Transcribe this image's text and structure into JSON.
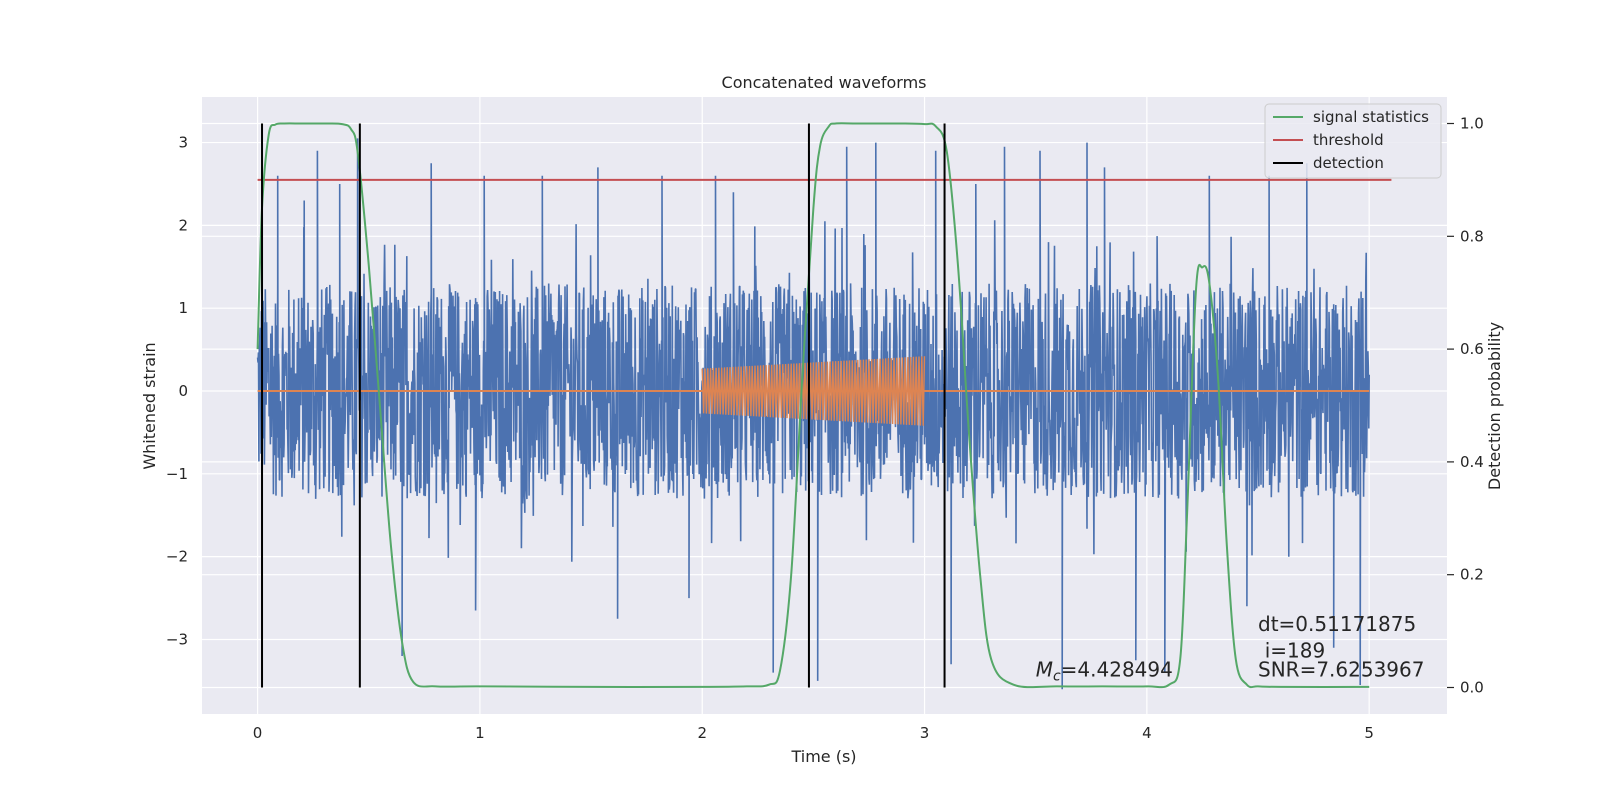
{
  "chart_data": {
    "type": "line",
    "title": "Concatenated waveforms",
    "xlabel": "Time (s)",
    "ylabel": "Whitened strain",
    "ylabel_right": "Detection probability",
    "xlim": [
      -0.25,
      5.35
    ],
    "ylim": [
      -3.9,
      3.55
    ],
    "ylim_right": [
      -0.047,
      1.047
    ],
    "x_ticks": [
      0,
      1,
      2,
      3,
      4,
      5
    ],
    "x_tick_labels": [
      "0",
      "1",
      "2",
      "3",
      "4",
      "5"
    ],
    "y_ticks": [
      -3,
      -2,
      -1,
      0,
      1,
      2,
      3
    ],
    "y_tick_labels": [
      "−3",
      "−2",
      "−1",
      "0",
      "1",
      "2",
      "3"
    ],
    "y_right_ticks": [
      0.0,
      0.2,
      0.4,
      0.6,
      0.8,
      1.0
    ],
    "y_right_tick_labels": [
      "0.0",
      "0.2",
      "0.4",
      "0.6",
      "0.8",
      "1.0"
    ],
    "grid": true,
    "legend_position": "top-right",
    "legend": [
      {
        "label": "signal statistics",
        "color": "#55a868"
      },
      {
        "label": "threshold",
        "color": "#c44e52"
      },
      {
        "label": "detection",
        "color": "#000000"
      }
    ],
    "series": [
      {
        "role": "whitened-strain-noise",
        "color": "#4c72b0",
        "x_range": [
          0,
          5
        ],
        "envelope": {
          "typical_abs": 1.3,
          "min": -3.6,
          "max": 3.2
        },
        "spikes": [
          [
            0.09,
            2.6
          ],
          [
            0.21,
            2.3
          ],
          [
            0.27,
            2.9
          ],
          [
            0.37,
            2.5
          ],
          [
            0.45,
            3.05
          ],
          [
            0.65,
            -3.2
          ],
          [
            0.78,
            2.75
          ],
          [
            0.98,
            -2.65
          ],
          [
            1.02,
            2.6
          ],
          [
            1.28,
            2.6
          ],
          [
            1.53,
            2.7
          ],
          [
            1.62,
            -2.75
          ],
          [
            1.82,
            2.6
          ],
          [
            1.94,
            -2.5
          ],
          [
            2.06,
            2.6
          ],
          [
            2.14,
            2.4
          ],
          [
            2.32,
            -3.4
          ],
          [
            2.48,
            2.9
          ],
          [
            2.52,
            -3.5
          ],
          [
            2.65,
            2.95
          ],
          [
            2.78,
            3.0
          ],
          [
            3.05,
            2.9
          ],
          [
            3.12,
            -3.3
          ],
          [
            3.23,
            2.5
          ],
          [
            3.36,
            2.95
          ],
          [
            3.52,
            2.9
          ],
          [
            3.62,
            -3.6
          ],
          [
            3.73,
            3.0
          ],
          [
            3.81,
            2.7
          ],
          [
            3.95,
            -3.25
          ],
          [
            4.08,
            -3.4
          ],
          [
            4.28,
            2.6
          ],
          [
            4.45,
            -2.6
          ],
          [
            4.55,
            2.6
          ],
          [
            4.72,
            2.75
          ],
          [
            4.84,
            -3.1
          ],
          [
            4.96,
            -3.55
          ]
        ]
      },
      {
        "role": "injected-waveform",
        "color": "#dd8452",
        "x": [
          2.0,
          3.0
        ],
        "amplitude_start": 0.27,
        "amplitude_end": 0.42,
        "baseline_x": [
          0,
          5
        ],
        "baseline_y": 0
      },
      {
        "name": "signal statistics",
        "axis": "right",
        "color": "#55a868",
        "x": [
          0,
          0.02,
          0.05,
          0.08,
          0.12,
          0.2,
          0.3,
          0.38,
          0.42,
          0.45,
          0.5,
          0.55,
          0.6,
          0.65,
          0.7,
          0.8,
          1.0,
          1.5,
          2.0,
          2.2,
          2.3,
          2.35,
          2.4,
          2.45,
          2.5,
          2.53,
          2.57,
          2.6,
          2.7,
          2.9,
          3.0,
          3.05,
          3.1,
          3.15,
          3.2,
          3.25,
          3.3,
          3.4,
          3.6,
          3.8,
          4.0,
          4.1,
          4.15,
          4.18,
          4.22,
          4.25,
          4.28,
          4.32,
          4.36,
          4.4,
          4.45,
          4.5,
          4.6,
          5.0
        ],
        "y": [
          0.6,
          0.85,
          0.98,
          0.998,
          1.0,
          1.0,
          1.0,
          0.999,
          0.99,
          0.95,
          0.75,
          0.5,
          0.25,
          0.08,
          0.01,
          0.002,
          0.002,
          0.001,
          0.001,
          0.002,
          0.005,
          0.03,
          0.2,
          0.55,
          0.85,
          0.96,
          0.995,
          1.0,
          1.0,
          1.0,
          0.999,
          0.995,
          0.95,
          0.75,
          0.45,
          0.2,
          0.05,
          0.005,
          0.002,
          0.002,
          0.002,
          0.005,
          0.05,
          0.3,
          0.7,
          0.745,
          0.72,
          0.55,
          0.25,
          0.05,
          0.005,
          0.002,
          0.001,
          0.001
        ]
      },
      {
        "name": "threshold",
        "axis": "right",
        "color": "#c44e52",
        "x": [
          0,
          5.1
        ],
        "y": [
          0.9,
          0.9
        ]
      }
    ],
    "detections_x": [
      0.02,
      0.46,
      2.48,
      3.09
    ],
    "annotations": [
      {
        "text": "Mc=4.428494",
        "math_symbol": "M",
        "math_sub": "c",
        "value_text": "=4.428494",
        "x": 3.5,
        "y": -3.45
      },
      {
        "text": "dt=0.51171875",
        "x": 4.5,
        "y": -2.9
      },
      {
        "text": "i=189",
        "x": 4.53,
        "y": -3.22
      },
      {
        "text": "SNR=7.6253967",
        "x": 4.5,
        "y": -3.45
      }
    ]
  }
}
